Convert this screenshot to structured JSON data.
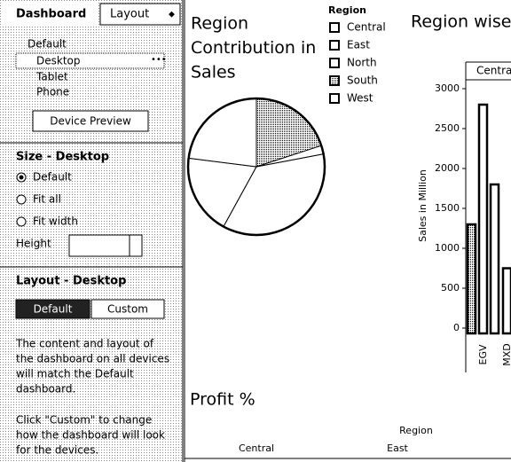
{
  "sidebar": {
    "tab": "Dashboard",
    "dropdown": "Layout",
    "devices": [
      "Default",
      "Desktop",
      "Tablet",
      "Phone"
    ],
    "device_preview": "Device Preview",
    "size_title": "Size - Desktop",
    "size_options": [
      "Default",
      "Fit all",
      "Fit width"
    ],
    "height_label": "Height",
    "layout_title": "Layout - Desktop",
    "layout_buttons": [
      "Default",
      "Custom"
    ],
    "paragraphs": [
      [
        "The content and layout of",
        "the dashboard on all devices",
        "will match the Default",
        "dashboard."
      ],
      [
        "Click \"Custom\" to change",
        "how the dashboard will look",
        "for the devices."
      ]
    ]
  },
  "pie": {
    "type": "pie",
    "title_lines": [
      "Region",
      "Contribution in",
      "Sales"
    ],
    "legend_title": "Region",
    "categories": [
      "Central",
      "East",
      "North",
      "South",
      "West"
    ],
    "values": [
      36,
      19,
      23,
      20,
      2
    ]
  },
  "bar": {
    "type": "bar",
    "title": "Region wise",
    "panel": "Centra",
    "y_label": "Sales in Million",
    "categories": [
      null,
      "EGV",
      null,
      "MXD"
    ],
    "values": [
      1300,
      2800,
      1800,
      750
    ],
    "ylim": [
      0,
      3000
    ],
    "yticks": [
      0,
      500,
      1000,
      1500,
      2000,
      2500,
      3000
    ]
  },
  "profit": {
    "title": "Profit %",
    "column_header": "Region",
    "columns": [
      "Central",
      "East"
    ]
  }
}
